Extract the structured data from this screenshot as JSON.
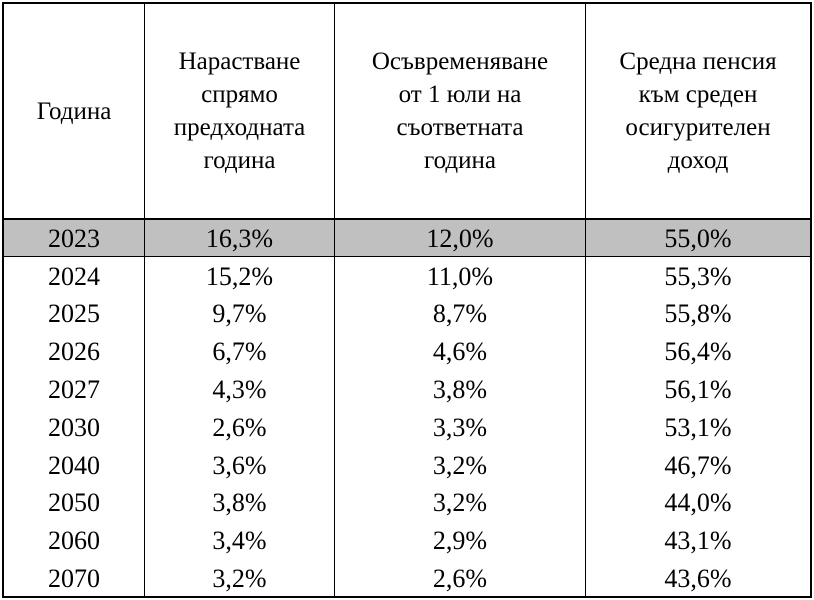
{
  "table": {
    "headers": [
      {
        "lines": [
          "Година"
        ]
      },
      {
        "lines": [
          "Нарастване",
          "спрямо",
          "предходната",
          "година"
        ]
      },
      {
        "lines": [
          "Осъвременяване",
          "от 1 юли на",
          "съответната",
          "година"
        ]
      },
      {
        "lines": [
          "Средна пенсия",
          "към среден",
          "осигурителен",
          "доход"
        ]
      }
    ],
    "highlight_color": "#c0c0c0",
    "rows": [
      [
        "2023",
        "16,3%",
        "12,0%",
        "55,0%"
      ],
      [
        "2024",
        "15,2%",
        "11,0%",
        "55,3%"
      ],
      [
        "2025",
        "9,7%",
        "8,7%",
        "55,8%"
      ],
      [
        "2026",
        "6,7%",
        "4,6%",
        "56,4%"
      ],
      [
        "2027",
        "4,3%",
        "3,8%",
        "56,1%"
      ],
      [
        "2030",
        "2,6%",
        "3,3%",
        "53,1%"
      ],
      [
        "2040",
        "3,6%",
        "3,2%",
        "46,7%"
      ],
      [
        "2050",
        "3,8%",
        "3,2%",
        "44,0%"
      ],
      [
        "2060",
        "3,4%",
        "2,9%",
        "43,1%"
      ],
      [
        "2070",
        "3,2%",
        "2,6%",
        "43,6%"
      ]
    ]
  }
}
